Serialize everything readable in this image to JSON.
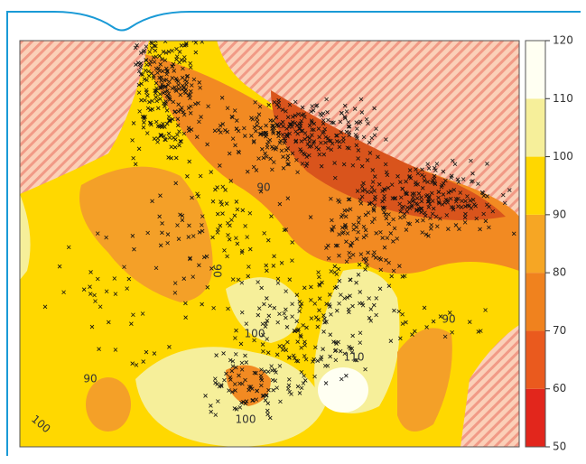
{
  "colorbar": {
    "ticks": [
      50,
      60,
      70,
      80,
      90,
      100,
      110,
      120
    ],
    "colors": [
      "#e2261c",
      "#ea5a1e",
      "#f0821e",
      "#f6a624",
      "#ffd700",
      "#f6ef9a",
      "#fffff2"
    ]
  },
  "contour_labels": [
    "90",
    "100",
    "110",
    "90",
    "90",
    "100",
    "100",
    "90"
  ]
}
